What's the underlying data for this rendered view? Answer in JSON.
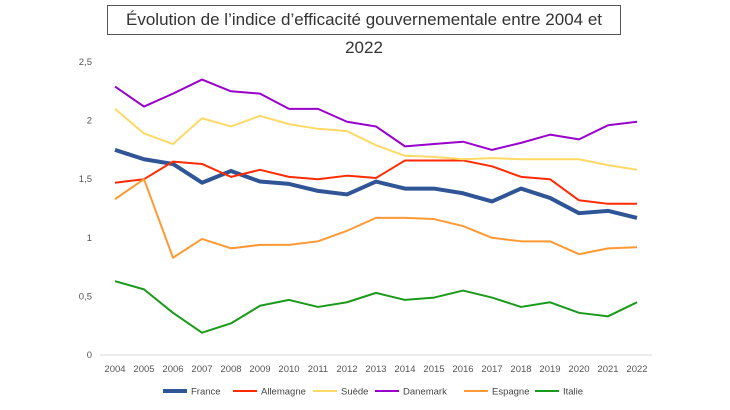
{
  "chart_data": {
    "type": "line",
    "title": "Évolution de l’indice d’efficacité gouvernementale entre 2004 et 2022",
    "xlabel": "",
    "ylabel": "",
    "x": [
      "2004",
      "2005",
      "2006",
      "2007",
      "2008",
      "2009",
      "2010",
      "2011",
      "2012",
      "2013",
      "2014",
      "2015",
      "2016",
      "2017",
      "2018",
      "2019",
      "2020",
      "2021",
      "2022"
    ],
    "ylim": [
      0,
      2.5
    ],
    "yticks": [
      "0",
      "0,5",
      "1",
      "1,5",
      "2",
      "2,5"
    ],
    "grid": false,
    "legend": "bottom",
    "series": [
      {
        "name": "France",
        "color": "#2f5597",
        "values": [
          1.75,
          1.67,
          1.63,
          1.47,
          1.57,
          1.48,
          1.46,
          1.4,
          1.37,
          1.48,
          1.42,
          1.42,
          1.38,
          1.31,
          1.42,
          1.34,
          1.21,
          1.23,
          1.17
        ]
      },
      {
        "name": "Allemagne",
        "color": "#ff2a00",
        "values": [
          1.47,
          1.5,
          1.65,
          1.63,
          1.52,
          1.58,
          1.52,
          1.5,
          1.53,
          1.51,
          1.66,
          1.66,
          1.66,
          1.61,
          1.52,
          1.5,
          1.32,
          1.29,
          1.29
        ]
      },
      {
        "name": "Suède",
        "color": "#ffd966",
        "values": [
          2.1,
          1.89,
          1.8,
          2.02,
          1.95,
          2.04,
          1.97,
          1.93,
          1.91,
          1.79,
          1.7,
          1.69,
          1.67,
          1.68,
          1.67,
          1.67,
          1.67,
          1.62,
          1.58
        ]
      },
      {
        "name": "Danemark",
        "color": "#9900cc",
        "values": [
          2.29,
          2.12,
          2.23,
          2.35,
          2.25,
          2.23,
          2.1,
          2.1,
          1.99,
          1.95,
          1.78,
          1.8,
          1.82,
          1.75,
          1.81,
          1.88,
          1.84,
          1.96,
          1.99
        ]
      },
      {
        "name": "Espagne",
        "color": "#ff9933",
        "values": [
          1.33,
          1.5,
          0.83,
          0.99,
          0.91,
          0.94,
          0.94,
          0.97,
          1.06,
          1.17,
          1.17,
          1.16,
          1.1,
          1.0,
          0.97,
          0.97,
          0.86,
          0.91,
          0.92
        ]
      },
      {
        "name": "Italie",
        "color": "#1a9a1a",
        "values": [
          0.63,
          0.56,
          0.36,
          0.19,
          0.27,
          0.42,
          0.47,
          0.41,
          0.45,
          0.53,
          0.47,
          0.49,
          0.55,
          0.49,
          0.41,
          0.45,
          0.36,
          0.33,
          0.45
        ]
      }
    ]
  }
}
